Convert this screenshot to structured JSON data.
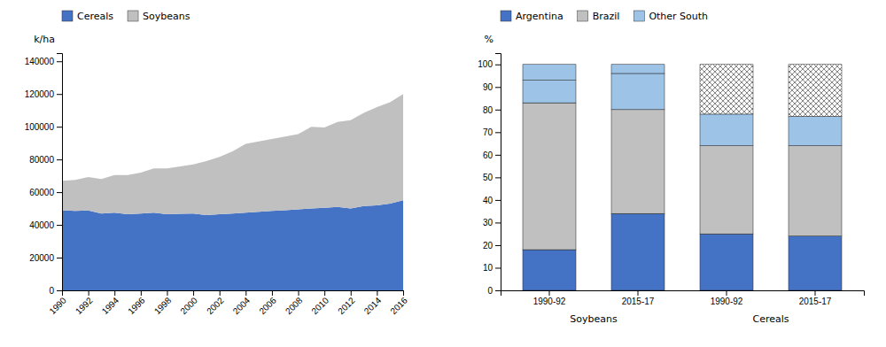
{
  "chart_data": [
    {
      "type": "area",
      "stacked": true,
      "x": [
        1990,
        1991,
        1992,
        1993,
        1994,
        1995,
        1996,
        1997,
        1998,
        1999,
        2000,
        2001,
        2002,
        2003,
        2004,
        2005,
        2006,
        2007,
        2008,
        2009,
        2010,
        2011,
        2012,
        2013,
        2014,
        2015,
        2016
      ],
      "series": [
        {
          "name": "Cereals",
          "color": "#4472C4",
          "values": [
            49000,
            48500,
            48800,
            47000,
            47500,
            46500,
            47000,
            47500,
            46500,
            46800,
            47000,
            46000,
            46500,
            47000,
            47500,
            48000,
            48500,
            49000,
            49500,
            50000,
            50500,
            51000,
            50000,
            51500,
            52000,
            53000,
            55000
          ]
        },
        {
          "name": "Soybeans",
          "color": "#C0C0C0",
          "values": [
            18000,
            19000,
            20500,
            21000,
            23000,
            24000,
            25000,
            27000,
            28000,
            29000,
            30000,
            33000,
            35000,
            38000,
            42000,
            43000,
            44000,
            45000,
            46000,
            50000,
            49000,
            52000,
            54000,
            57000,
            60000,
            62000,
            65000
          ]
        }
      ],
      "xlim": [
        1990,
        2016
      ],
      "xticks": [
        1990,
        1992,
        1994,
        1996,
        1998,
        2000,
        2002,
        2004,
        2006,
        2008,
        2010,
        2012,
        2014,
        2016
      ],
      "ylim": [
        0,
        145000
      ],
      "yticks": [
        0,
        20000,
        40000,
        60000,
        80000,
        100000,
        120000,
        140000
      ],
      "ylabel": "k/ha",
      "legend": "upper left",
      "grid": false
    },
    {
      "type": "bar",
      "stacked": true,
      "categories": [
        "1990-92",
        "2015-17",
        "1990-92",
        "2015-17"
      ],
      "series": [
        {
          "name": "Argentina",
          "color": "#4472C4",
          "values": [
            18,
            34,
            25,
            24
          ]
        },
        {
          "name": "Brazil",
          "color": "#C0C0C0",
          "values": [
            65,
            46,
            39,
            40
          ]
        },
        {
          "name": "Other South",
          "color": "#9DC3E6",
          "values": [
            10,
            16,
            14,
            13
          ]
        },
        {
          "colors": [
            "#9DC3E6",
            "#9DC3E6",
            "#FFFFFF",
            "#FFFFFF"
          ],
          "values": [
            7,
            4,
            22,
            23
          ]
        }
      ],
      "ylim": [
        0,
        105
      ],
      "yticks": [
        0,
        10,
        20,
        30,
        40,
        50,
        60,
        70,
        80,
        90,
        100
      ],
      "ylabel": "%",
      "annotations": [
        {
          "text": "Soybeans"
        },
        {
          "text": "Cereals"
        }
      ],
      "legend": "upper left",
      "grid": false
    }
  ]
}
